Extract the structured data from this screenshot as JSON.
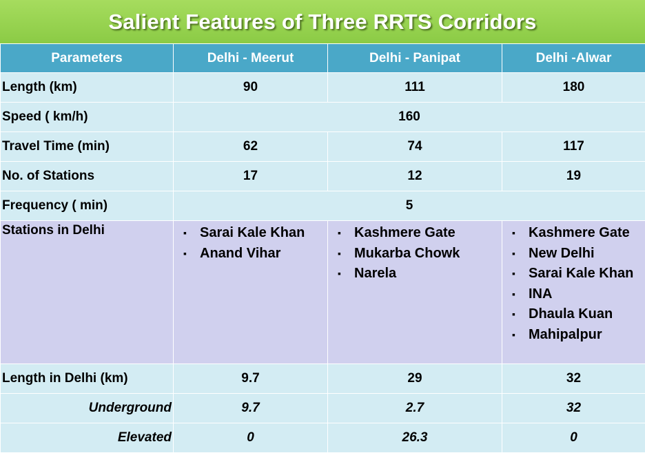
{
  "title": "Salient Features of Three RRTS Corridors",
  "headers": [
    "Parameters",
    "Delhi - Meerut",
    "Delhi - Panipat",
    "Delhi -Alwar"
  ],
  "rows": {
    "length": {
      "label": "Length (km)",
      "values": [
        "90",
        "111",
        "180"
      ]
    },
    "speed": {
      "label": "Speed ( km/h)",
      "value": "160"
    },
    "travel": {
      "label": "Travel Time  (min)",
      "values": [
        "62",
        "74",
        "117"
      ]
    },
    "stations_count": {
      "label": "No. of  Stations",
      "values": [
        "17",
        "12",
        "19"
      ]
    },
    "frequency": {
      "label": "Frequency ( min)",
      "value": "5"
    },
    "stations_delhi": {
      "label": "Stations in Delhi",
      "bullet": "▪",
      "lists": [
        [
          "Sarai Kale Khan",
          "Anand Vihar"
        ],
        [
          "Kashmere Gate",
          "Mukarba Chowk",
          "Narela"
        ],
        [
          "Kashmere Gate",
          "New Delhi",
          "Sarai Kale Khan",
          "INA",
          "Dhaula Kuan",
          "Mahipalpur"
        ]
      ]
    },
    "length_delhi": {
      "label": "Length in Delhi (km)",
      "values": [
        "9.7",
        "29",
        "32"
      ]
    },
    "underground": {
      "label": "Underground",
      "values": [
        "9.7",
        "2.7",
        "32"
      ]
    },
    "elevated": {
      "label": "Elevated",
      "values": [
        "0",
        "26.3",
        "0"
      ]
    }
  }
}
